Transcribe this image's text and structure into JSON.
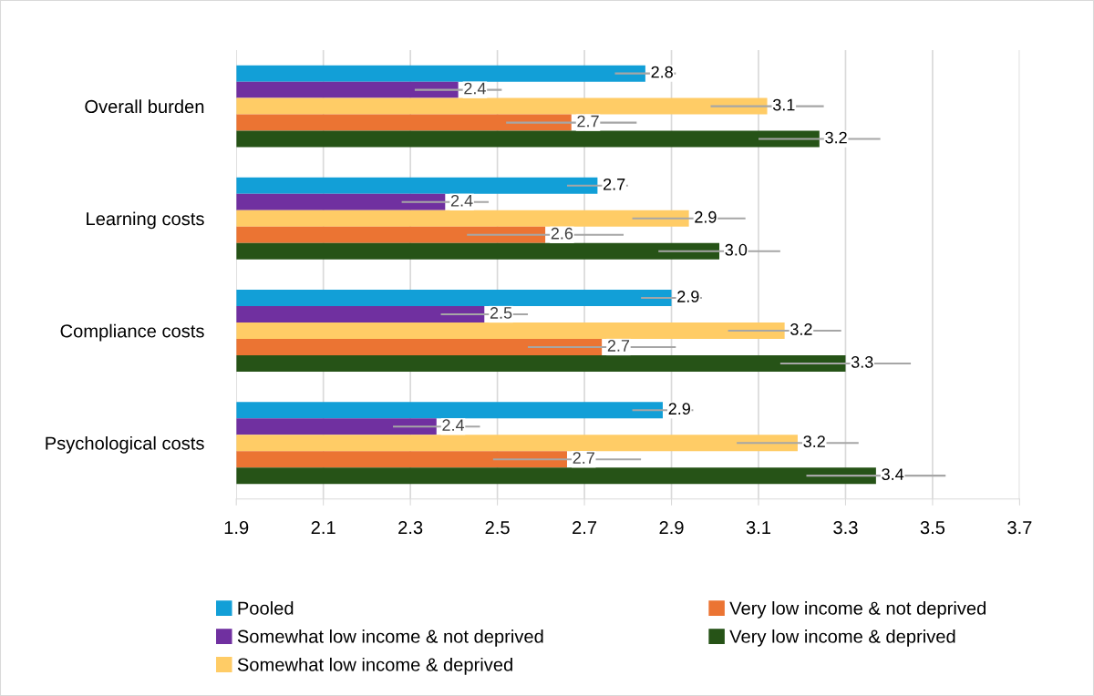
{
  "chart_data": {
    "type": "bar",
    "orientation": "horizontal",
    "categories": [
      "Overall burden",
      "Learning costs",
      "Compliance costs",
      "Psychological costs"
    ],
    "series": [
      {
        "name": "Pooled",
        "color": "#129fd7",
        "values": [
          2.84,
          2.73,
          2.9,
          2.88
        ],
        "errors": [
          0.07,
          0.07,
          0.07,
          0.07
        ],
        "value_labels": [
          "2.8",
          "2.7",
          "2.9",
          "2.9"
        ]
      },
      {
        "name": "Somewhat low income & not deprived",
        "color": "#7030a0",
        "values": [
          2.41,
          2.38,
          2.47,
          2.36
        ],
        "errors": [
          0.1,
          0.1,
          0.1,
          0.1
        ],
        "value_labels": [
          "2.4",
          "2.4",
          "2.5",
          "2.4"
        ]
      },
      {
        "name": "Somewhat low income & deprived",
        "color": "#ffcc66",
        "values": [
          3.12,
          2.94,
          3.16,
          3.19
        ],
        "errors": [
          0.13,
          0.13,
          0.13,
          0.14
        ],
        "value_labels": [
          "3.1",
          "2.9",
          "3.2",
          "3.2"
        ]
      },
      {
        "name": "Very low income & not deprived",
        "color": "#eb7433",
        "values": [
          2.67,
          2.61,
          2.74,
          2.66
        ],
        "errors": [
          0.15,
          0.18,
          0.17,
          0.17
        ],
        "value_labels": [
          "2.7",
          "2.6",
          "2.7",
          "2.7"
        ]
      },
      {
        "name": "Very low income & deprived",
        "color": "#265317",
        "values": [
          3.24,
          3.01,
          3.3,
          3.37
        ],
        "errors": [
          0.14,
          0.14,
          0.15,
          0.16
        ],
        "value_labels": [
          "3.2",
          "3.0",
          "3.3",
          "3.4"
        ]
      }
    ],
    "xlim": [
      1.9,
      3.7
    ],
    "xticks": [
      1.9,
      2.1,
      2.3,
      2.5,
      2.7,
      2.9,
      3.1,
      3.3,
      3.5,
      3.7
    ],
    "grid": "x",
    "legend": "bottom"
  }
}
